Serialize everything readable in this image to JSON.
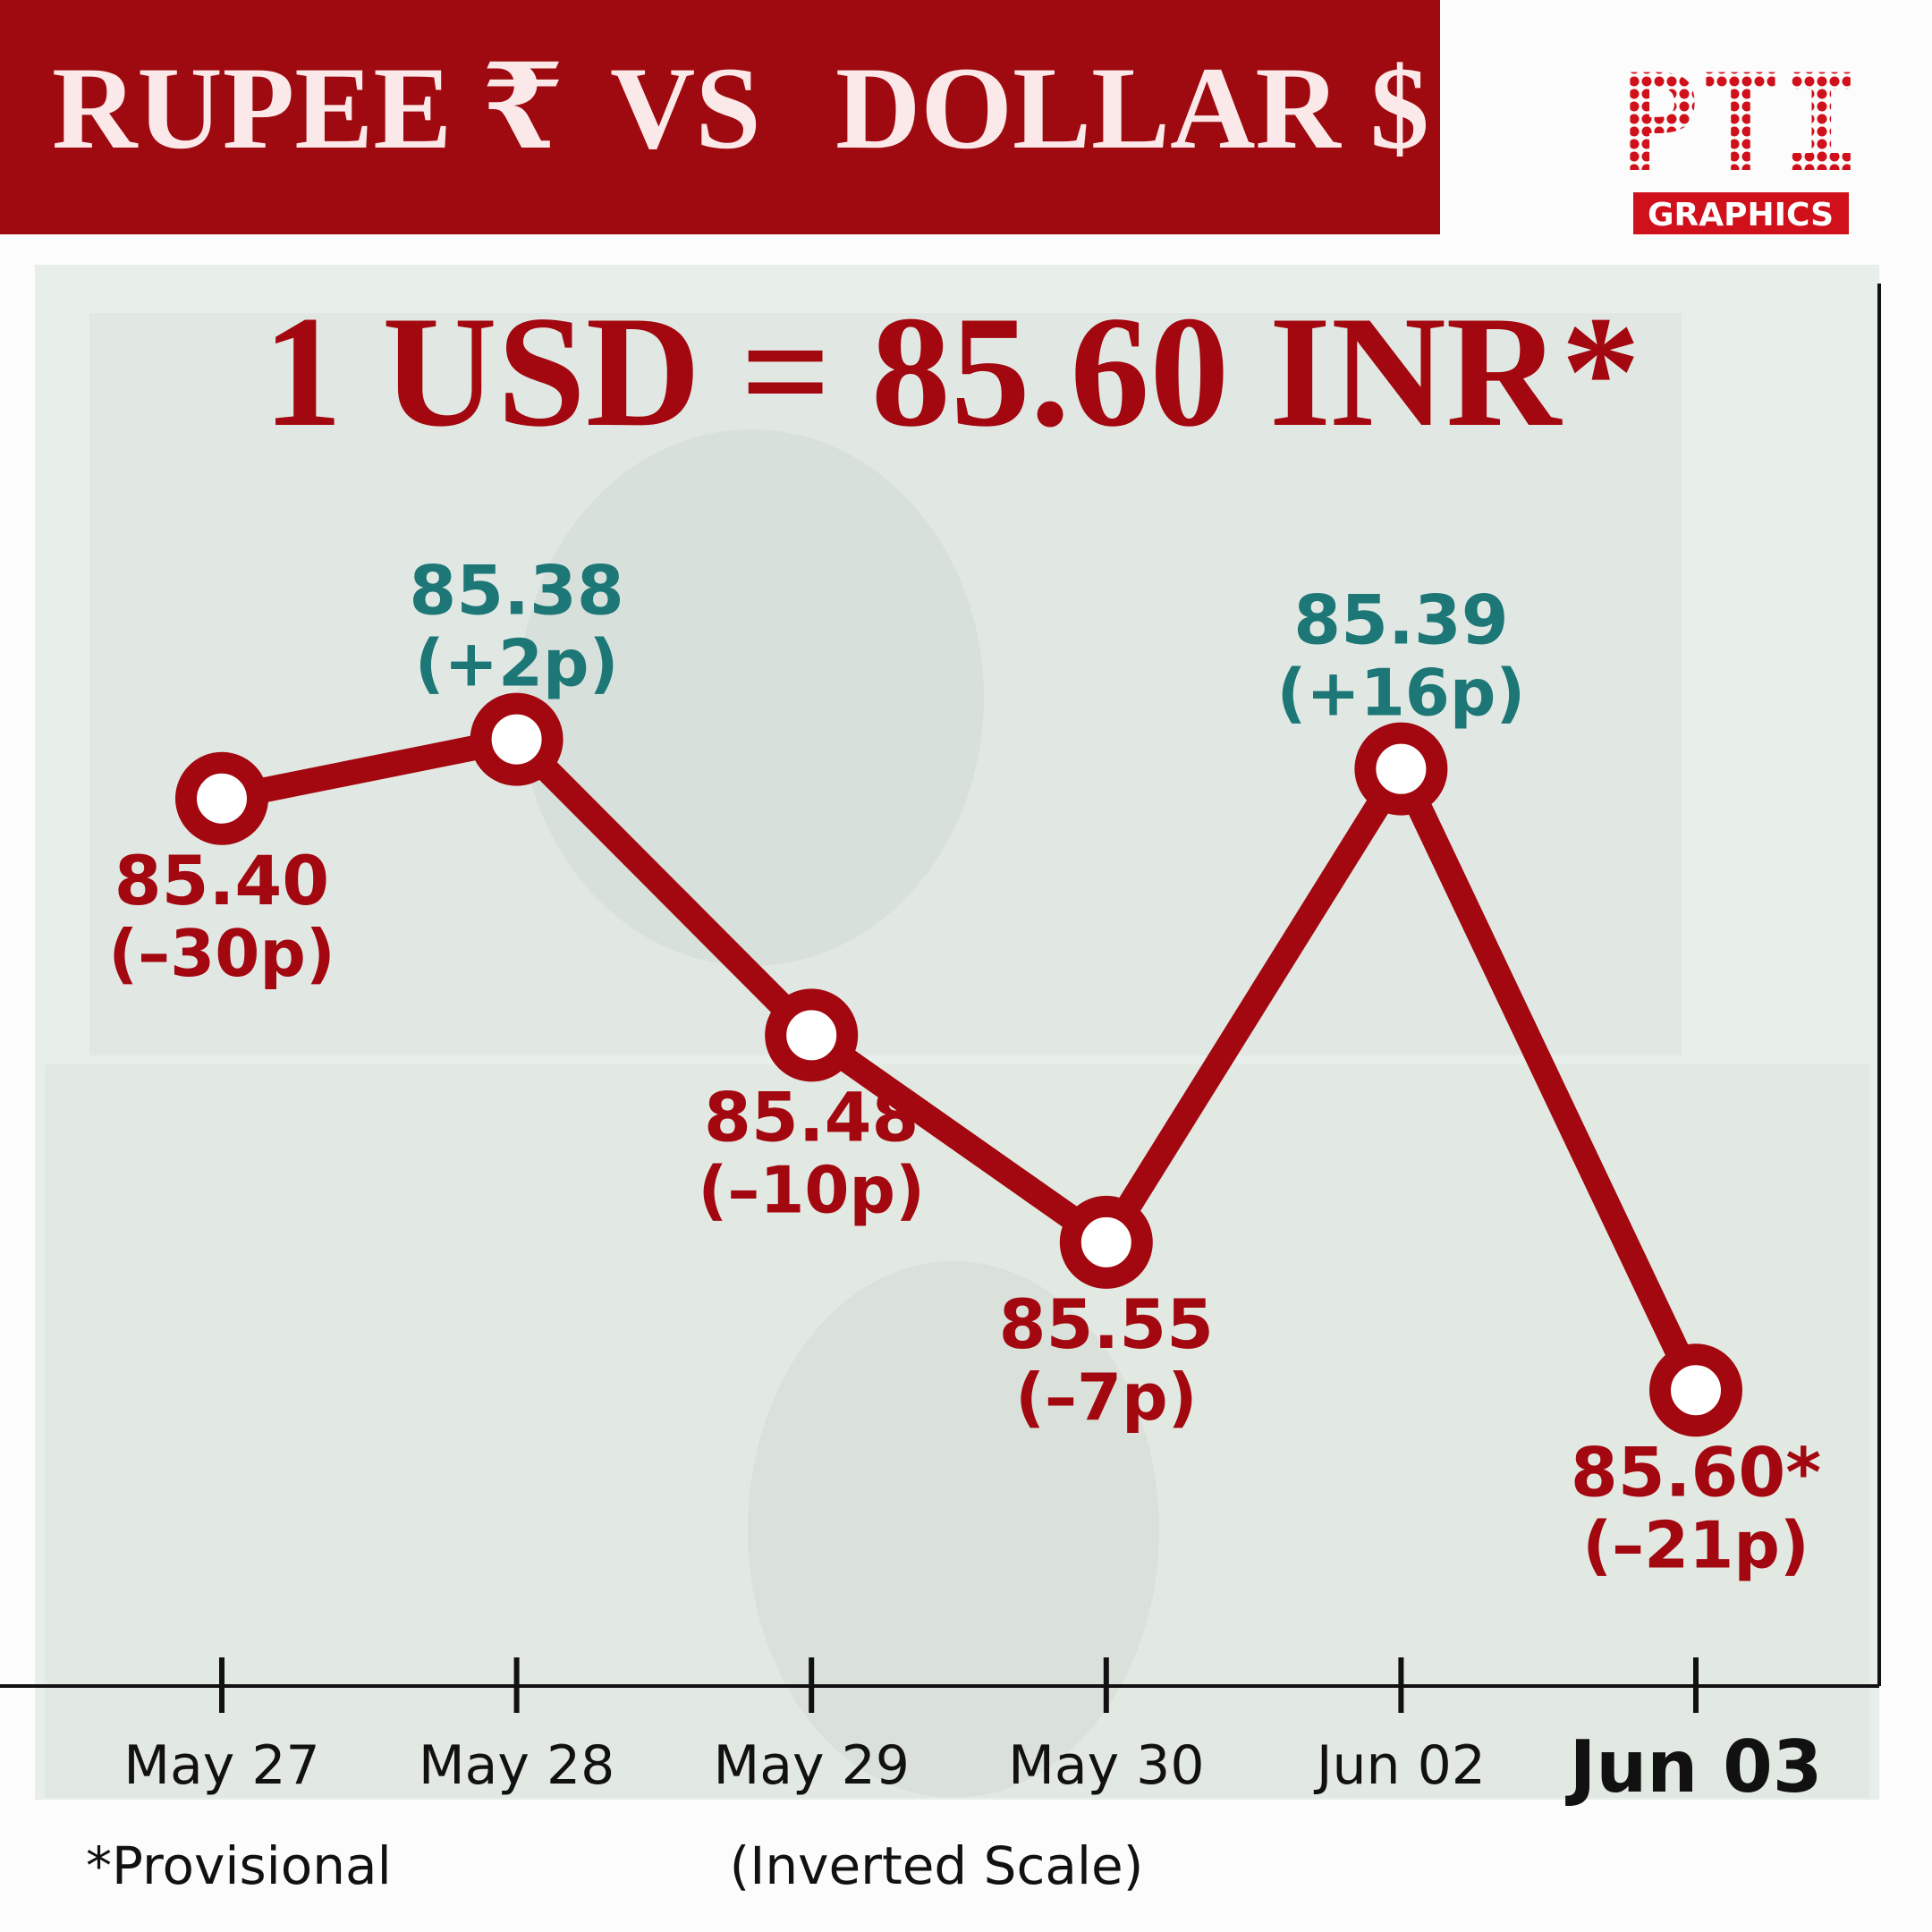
{
  "header": {
    "title_parts": [
      "RUPEE ₹",
      "VS",
      "DOLLAR $"
    ],
    "logo_text": "PTI",
    "logo_caption": "GRAPHICS"
  },
  "chart_data": {
    "type": "line",
    "headline": "1 USD = 85.60 INR*",
    "categories": [
      "May 27",
      "May 28",
      "May 29",
      "May 30",
      "Jun 02",
      "Jun 03"
    ],
    "values": [
      85.4,
      85.38,
      85.48,
      85.55,
      85.39,
      85.6
    ],
    "value_labels": [
      "85.40",
      "85.38",
      "85.48",
      "85.55",
      "85.39",
      "85.60*"
    ],
    "change_labels": [
      "(–30p)",
      "(+2p)",
      "(–10p)",
      "(–7p)",
      "(+16p)",
      "(–21p)"
    ],
    "label_colors": [
      "#a3070f",
      "#1d7777",
      "#a3070f",
      "#a3070f",
      "#1d7777",
      "#a3070f"
    ],
    "label_positions": [
      "below",
      "above",
      "below",
      "below",
      "above",
      "below"
    ],
    "color": "#a3070f",
    "ylim": [
      85.3,
      85.7
    ],
    "invert_y": true,
    "footnote": "*Provisional",
    "scale_note": "(Inverted Scale)"
  }
}
